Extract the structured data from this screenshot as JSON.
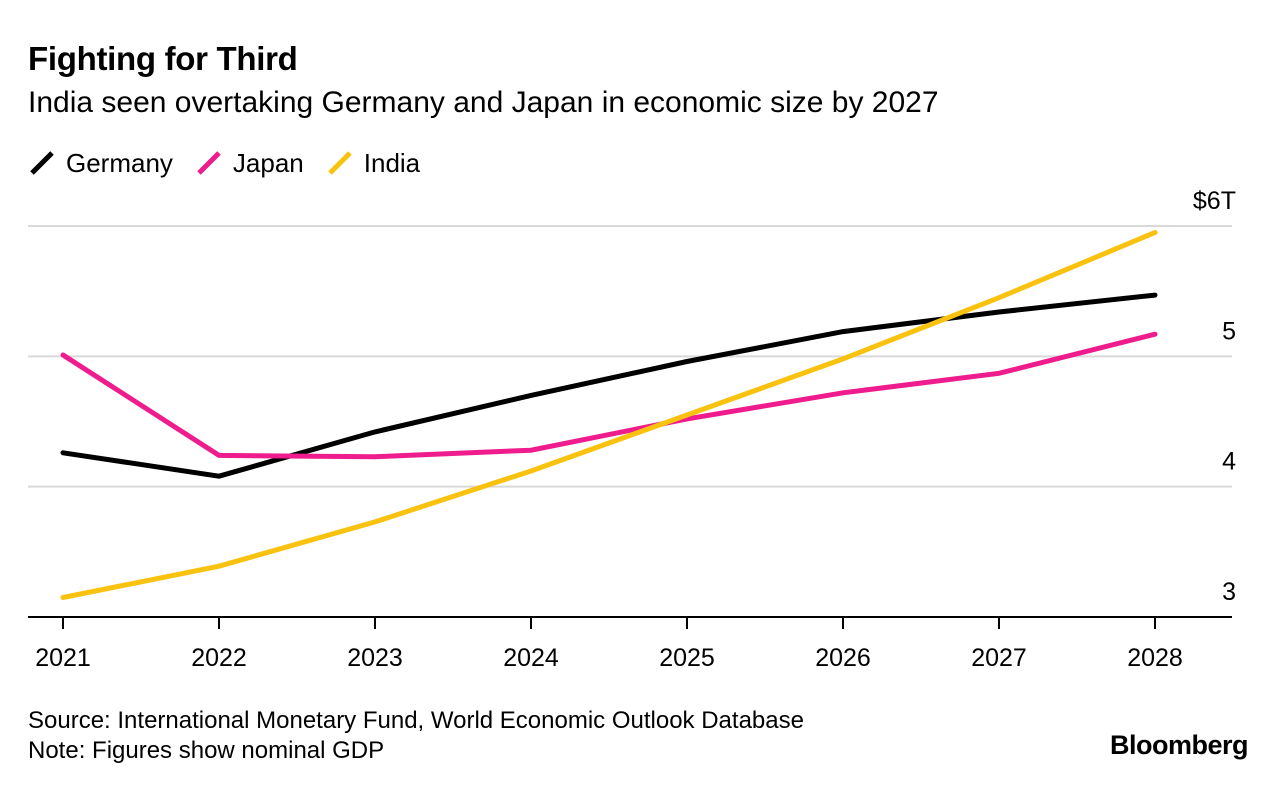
{
  "chart_data": {
    "type": "line",
    "title": "Fighting for Third",
    "subtitle": "India seen overtaking Germany and Japan in economic size by 2027",
    "x": [
      "2021",
      "2022",
      "2023",
      "2024",
      "2025",
      "2026",
      "2027",
      "2028"
    ],
    "series": [
      {
        "name": "Germany",
        "color": "#000000",
        "values": [
          4.26,
          4.08,
          4.42,
          4.7,
          4.96,
          5.19,
          5.34,
          5.47
        ]
      },
      {
        "name": "Japan",
        "color": "#ee1c8c",
        "values": [
          5.01,
          4.24,
          4.23,
          4.28,
          4.52,
          4.72,
          4.87,
          5.17
        ]
      },
      {
        "name": "India",
        "color": "#f8c20f",
        "values": [
          3.15,
          3.39,
          3.73,
          4.12,
          4.55,
          4.98,
          5.45,
          5.95
        ]
      }
    ],
    "y_ticks": [
      {
        "value": 3,
        "label": "3"
      },
      {
        "value": 4,
        "label": "4"
      },
      {
        "value": 5,
        "label": "5"
      },
      {
        "value": 6,
        "label": "$6T"
      }
    ],
    "ylim": [
      3,
      6
    ],
    "xlabel": "",
    "ylabel": "",
    "legend_position": "top-left",
    "grid": true
  },
  "source": "Source: International Monetary Fund, World Economic Outlook Database",
  "note": "Note: Figures show nominal GDP",
  "brand": "Bloomberg"
}
